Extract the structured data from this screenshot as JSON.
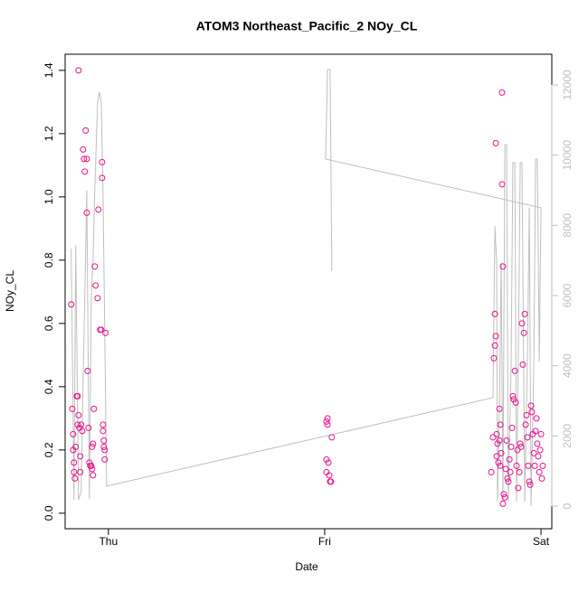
{
  "chart_data": {
    "type": "scatter",
    "title": "ATOM3 Northeast_Pacific_2 NOy_CL",
    "xlabel": "Date",
    "ylabel": "NOy_CL",
    "xlim": [
      -0.2,
      2.05
    ],
    "xticks": [
      {
        "value": 0,
        "label": "Thu"
      },
      {
        "value": 1,
        "label": "Fri"
      },
      {
        "value": 2,
        "label": "Sat"
      }
    ],
    "ylim": [
      -0.049,
      1.451
    ],
    "yticks": [
      {
        "value": 0,
        "label": "0.0"
      },
      0.2,
      0.4,
      0.6,
      0.8,
      {
        "value": 1,
        "label": "1.0"
      },
      1.2,
      1.4
    ],
    "y2lim": [
      -644,
      12876
    ],
    "y2ticks": [
      0,
      2000,
      4000,
      6000,
      8000,
      10000,
      12000
    ],
    "series": [
      {
        "type": "scatter",
        "color": "#e8138c",
        "x": [
          -0.172,
          -0.167,
          -0.163,
          -0.163,
          -0.159,
          -0.159,
          -0.155,
          -0.151,
          -0.146,
          -0.142,
          -0.142,
          -0.138,
          -0.138,
          -0.134,
          -0.13,
          -0.13,
          -0.126,
          -0.121,
          -0.117,
          -0.113,
          -0.109,
          -0.105,
          -0.1,
          -0.1,
          -0.096,
          -0.092,
          -0.088,
          -0.084,
          -0.079,
          -0.075,
          -0.075,
          -0.071,
          -0.071,
          -0.067,
          -0.063,
          -0.059,
          -0.05,
          -0.046,
          -0.038,
          -0.033,
          -0.029,
          -0.029,
          -0.025,
          -0.025,
          -0.021,
          -0.021,
          -0.017,
          -0.017,
          -0.013,
          1.008,
          1.013,
          1.013,
          1.008,
          1.017,
          1.008,
          1.021,
          1.025,
          1.029,
          1.033,
          1.77,
          1.778,
          1.782,
          1.787,
          1.787,
          1.791,
          1.791,
          1.795,
          1.795,
          1.799,
          1.803,
          1.808,
          1.808,
          1.812,
          1.812,
          1.816,
          1.82,
          1.82,
          1.824,
          1.824,
          1.828,
          1.833,
          1.837,
          1.841,
          1.845,
          1.849,
          1.854,
          1.858,
          1.862,
          1.866,
          1.87,
          1.874,
          1.879,
          1.883,
          1.887,
          1.891,
          1.895,
          1.9,
          1.904,
          1.908,
          1.912,
          1.916,
          1.921,
          1.925,
          1.929,
          1.933,
          1.937,
          1.941,
          1.946,
          1.95,
          1.954,
          1.958,
          1.962,
          1.967,
          1.971,
          1.975,
          1.979,
          1.983,
          1.987,
          1.992,
          1.996,
          2.0,
          2.004,
          2.008
        ],
        "values": [
          0.66,
          0.33,
          0.25,
          0.2,
          0.16,
          0.13,
          0.11,
          0.21,
          0.37,
          0.37,
          0.28,
          1.4,
          0.31,
          0.27,
          0.18,
          0.13,
          0.28,
          0.26,
          1.15,
          1.12,
          1.08,
          1.21,
          0.95,
          1.12,
          0.45,
          0.27,
          0.16,
          0.15,
          0.15,
          0.14,
          0.21,
          0.12,
          0.22,
          0.33,
          0.78,
          0.72,
          0.68,
          0.96,
          0.58,
          0.58,
          1.11,
          1.06,
          0.28,
          0.26,
          0.23,
          0.21,
          0.2,
          0.17,
          0.57,
          0.29,
          0.3,
          0.28,
          0.17,
          0.16,
          0.13,
          0.12,
          0.1,
          0.1,
          0.24,
          0.13,
          0.24,
          0.49,
          0.63,
          0.53,
          0.56,
          1.17,
          0.18,
          0.25,
          0.22,
          0.16,
          0.23,
          0.33,
          0.15,
          0.28,
          0.19,
          1.33,
          1.04,
          0.78,
          0.03,
          0.06,
          0.05,
          0.14,
          0.23,
          0.11,
          0.1,
          0.17,
          0.13,
          0.21,
          0.27,
          0.37,
          0.36,
          0.45,
          0.35,
          0.15,
          0.2,
          0.08,
          0.13,
          0.22,
          0.21,
          0.6,
          0.47,
          0.57,
          0.63,
          0.28,
          0.31,
          0.24,
          0.15,
          0.1,
          0.09,
          0.34,
          0.32,
          0.25,
          0.19,
          0.15,
          0.26,
          0.3,
          0.22,
          0.18,
          0.13,
          0.2,
          0.25,
          0.11,
          0.15
        ]
      },
      {
        "type": "line",
        "color": "#bfbfbf",
        "axis": "y2",
        "x": [
          -0.172,
          -0.159,
          -0.151,
          -0.138,
          -0.126,
          -0.117,
          -0.109,
          -0.1,
          -0.096,
          -0.088,
          -0.079,
          -0.071,
          -0.063,
          -0.05,
          -0.042,
          -0.033,
          -0.025,
          -0.017,
          -0.008,
          1.778,
          1.787,
          1.795,
          1.799,
          1.808,
          1.816,
          1.824,
          1.833,
          1.841,
          1.849,
          1.862,
          1.87,
          1.879,
          1.887,
          1.895,
          1.904,
          1.912,
          1.925,
          1.937,
          1.946,
          1.954,
          1.967,
          1.975,
          1.983,
          1.992,
          2.0,
          1.004,
          1.013,
          1.025,
          1.033
        ],
        "values": [
          7340,
          180,
          7420,
          180,
          400,
          3600,
          6000,
          9000,
          6000,
          200,
          6000,
          7000,
          9000,
          11500,
          11800,
          11500,
          9000,
          5000,
          570,
          3090,
          7980,
          6950,
          130,
          2830,
          6950,
          130,
          10300,
          10300,
          130,
          4120,
          9790,
          9790,
          130,
          4120,
          9790,
          9790,
          130,
          4120,
          8500,
          0,
          4120,
          9890,
          9890,
          4120,
          8500,
          9890,
          12440,
          12440,
          6700
        ]
      }
    ]
  }
}
